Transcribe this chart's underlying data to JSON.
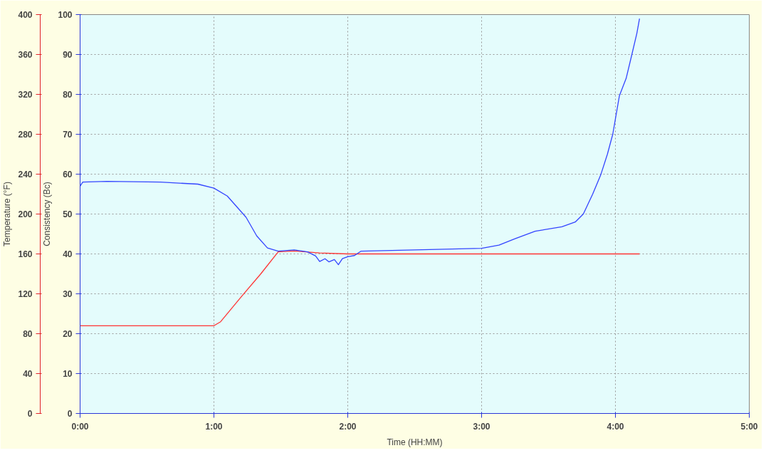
{
  "chart_data": {
    "type": "line",
    "xlabel": "Time (HH:MM)",
    "ylabel": "Temperature (°F)",
    "y2label": "Consistency (Bc)",
    "xlim": [
      0,
      5
    ],
    "xticks": [
      {
        "value": 0,
        "label": "0:00"
      },
      {
        "value": 1,
        "label": "1:00"
      },
      {
        "value": 2,
        "label": "2:00"
      },
      {
        "value": 3,
        "label": "3:00"
      },
      {
        "value": 4,
        "label": "4:00"
      },
      {
        "value": 5,
        "label": "5:00"
      }
    ],
    "ylim": [
      0,
      400
    ],
    "yticks": [
      0,
      40,
      80,
      120,
      160,
      200,
      240,
      280,
      320,
      360,
      400
    ],
    "y2lim": [
      0,
      100
    ],
    "y2ticks": [
      0,
      10,
      20,
      30,
      40,
      50,
      60,
      70,
      80,
      90,
      100
    ],
    "grid": true,
    "line_style": "solid",
    "series": [
      {
        "color": "#ff3333",
        "x": [
          0,
          0.5,
          1.0,
          1.05,
          1.21,
          1.35,
          1.48,
          1.6,
          1.79,
          2.0,
          3.0,
          4.18
        ],
        "values": [
          88,
          88,
          88,
          92,
          118,
          140,
          162,
          163,
          161,
          160,
          160,
          160
        ]
      },
      {
        "color": "#3344ff",
        "axis": "y2",
        "x": [
          0,
          0.02,
          0.2,
          0.6,
          0.88,
          1.0,
          1.1,
          1.24,
          1.32,
          1.4,
          1.48,
          1.6,
          1.7,
          1.76,
          1.79,
          1.83,
          1.86,
          1.9,
          1.93,
          1.96,
          2.0,
          2.05,
          2.1,
          2.5,
          3.0,
          3.13,
          3.25,
          3.4,
          3.6,
          3.7,
          3.76,
          3.83,
          3.89,
          3.94,
          3.98,
          4.03,
          4.08,
          4.12,
          4.16,
          4.18
        ],
        "values": [
          57,
          58,
          58.2,
          58,
          57.5,
          56.5,
          54.5,
          49.2,
          44.5,
          41.5,
          40.7,
          41,
          40.5,
          39.5,
          38.1,
          38.8,
          38.0,
          38.6,
          37.3,
          38.8,
          39.3,
          39.6,
          40.7,
          41,
          41.4,
          42.2,
          43.8,
          45.7,
          46.8,
          48,
          50,
          55,
          59.8,
          65,
          70,
          79.7,
          84,
          89.6,
          95.3,
          99
        ]
      }
    ]
  }
}
